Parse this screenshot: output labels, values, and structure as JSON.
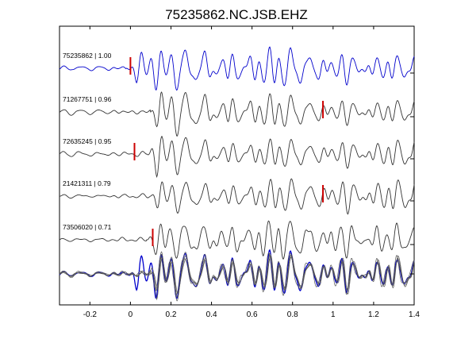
{
  "chart_data": {
    "type": "line",
    "title": "75235862.NC.JSB.EHZ",
    "xlabel": "",
    "ylabel": "",
    "xlim": [
      -0.35,
      1.4
    ],
    "xticks": [
      -0.2,
      0,
      0.2,
      0.4,
      0.6,
      0.8,
      1,
      1.2,
      1.4
    ],
    "xtick_labels": [
      "-0.2",
      "0",
      "0.2",
      "0.4",
      "0.6",
      "0.8",
      "1",
      "1.2",
      "1.4"
    ],
    "grid": false,
    "legend": "none",
    "traces": [
      {
        "label": "75235862 | 1.00",
        "pick_time": 0.0,
        "color": "#0000cc",
        "pick_color": "#cc0000",
        "seed": 1,
        "onset": -0.02
      },
      {
        "label": "71267751 | 0.96",
        "pick_time": 0.95,
        "color": "#333333",
        "pick_color": "#cc0000",
        "seed": 2,
        "onset": 0.1
      },
      {
        "label": "72635245 | 0.95",
        "pick_time": 0.02,
        "color": "#333333",
        "pick_color": "#cc0000",
        "seed": 3,
        "onset": 0.08
      },
      {
        "label": "21421311 | 0.79",
        "pick_time": 0.95,
        "color": "#333333",
        "pick_color": "#cc0000",
        "seed": 4,
        "onset": 0.1
      },
      {
        "label": "73506020 | 0.71",
        "pick_time": 0.11,
        "color": "#333333",
        "pick_color": "#cc0000",
        "seed": 5,
        "onset": 0.08
      }
    ],
    "stack": {
      "primary_color": "#0000cc",
      "other_color": "#555555"
    }
  }
}
